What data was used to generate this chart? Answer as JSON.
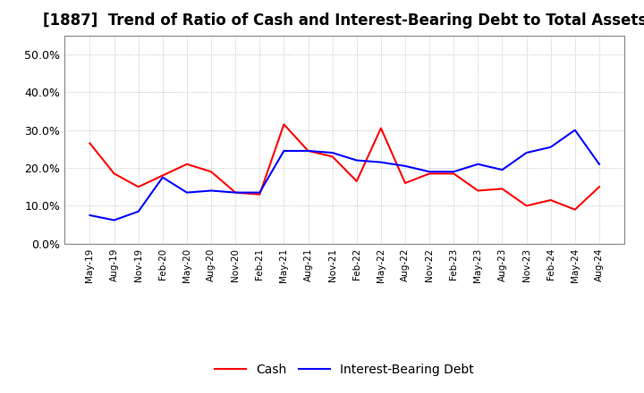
{
  "title": "[1887]  Trend of Ratio of Cash and Interest-Bearing Debt to Total Assets",
  "x_labels": [
    "May-19",
    "Aug-19",
    "Nov-19",
    "Feb-20",
    "May-20",
    "Aug-20",
    "Nov-20",
    "Feb-21",
    "May-21",
    "Aug-21",
    "Nov-21",
    "Feb-22",
    "May-22",
    "Aug-22",
    "Nov-22",
    "Feb-23",
    "May-23",
    "Aug-23",
    "Nov-23",
    "Feb-24",
    "May-24",
    "Aug-24"
  ],
  "cash": [
    0.265,
    0.185,
    0.15,
    0.18,
    0.21,
    0.19,
    0.135,
    0.13,
    0.315,
    0.245,
    0.23,
    0.165,
    0.305,
    0.16,
    0.185,
    0.185,
    0.14,
    0.145,
    0.1,
    0.115,
    0.09,
    0.15
  ],
  "interest_bearing_debt": [
    0.075,
    0.062,
    0.085,
    0.175,
    0.135,
    0.14,
    0.135,
    0.135,
    0.245,
    0.245,
    0.24,
    0.22,
    0.215,
    0.205,
    0.19,
    0.19,
    0.21,
    0.195,
    0.24,
    0.255,
    0.3,
    0.21
  ],
  "cash_color": "#ff0000",
  "debt_color": "#0000ff",
  "ylim": [
    0.0,
    0.55
  ],
  "yticks": [
    0.0,
    0.1,
    0.2,
    0.3,
    0.4,
    0.5
  ],
  "ytick_labels": [
    "0.0%",
    "10.0%",
    "20.0%",
    "30.0%",
    "40.0%",
    "50.0%"
  ],
  "background_color": "#ffffff",
  "plot_background": "#ffffff",
  "grid_color": "#aaaaaa",
  "title_fontsize": 12,
  "legend_cash": "Cash",
  "legend_debt": "Interest-Bearing Debt"
}
